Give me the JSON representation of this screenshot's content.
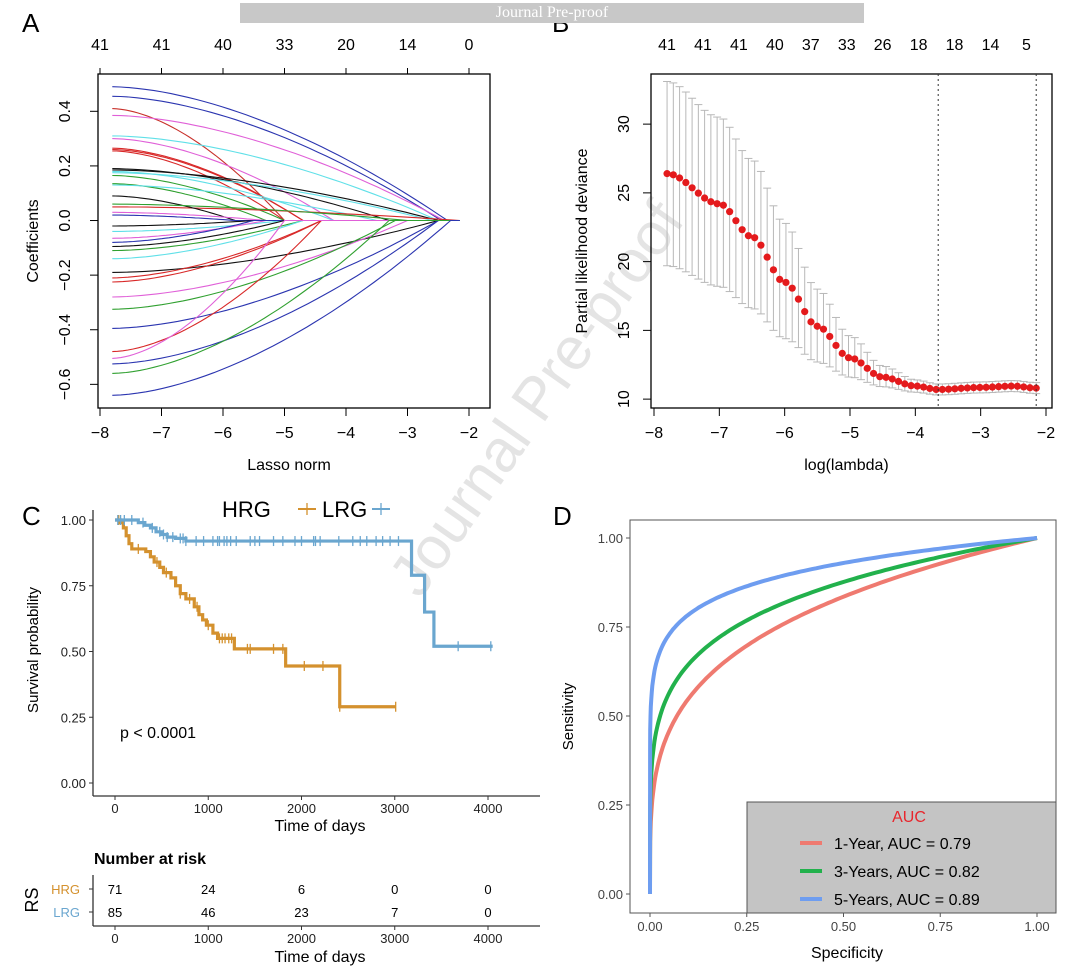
{
  "banner": "Journal Pre-proof",
  "watermark": "Journal Pre-proof",
  "chart_data": [
    {
      "panel": "A",
      "type": "line",
      "title": "",
      "xlabel": "Lasso norm",
      "ylabel": "Coefficients",
      "xlim": [
        -8,
        -2
      ],
      "ylim": [
        -0.65,
        0.5
      ],
      "x_ticks": [
        -8,
        -7,
        -6,
        -5,
        -4,
        -3,
        -2
      ],
      "x_tick_labels": [
        "−8",
        "−7",
        "−6",
        "−5",
        "−4",
        "−3",
        "−2"
      ],
      "y_ticks": [
        -0.6,
        -0.4,
        -0.2,
        0.0,
        0.2,
        0.4
      ],
      "y_tick_labels": [
        "−0.6",
        "−0.4",
        "−0.2",
        "0.0",
        "0.2",
        "0.4"
      ],
      "top_ticks": [
        -8,
        -7,
        -6,
        -5,
        -4,
        -3,
        -2
      ],
      "top_labels": [
        "41",
        "41",
        "40",
        "33",
        "20",
        "14",
        "0"
      ],
      "x_start": -7.8,
      "series": [
        {
          "color": "#2b35b0",
          "start": 0.49,
          "zero_at": -2.35
        },
        {
          "color": "#2b35b0",
          "start": 0.455,
          "zero_at": -2.45
        },
        {
          "color": "#c8302a",
          "start": 0.41,
          "zero_at": -5.0
        },
        {
          "color": "#e060d8",
          "start": 0.385,
          "zero_at": -2.4
        },
        {
          "color": "#60e0e8",
          "start": 0.31,
          "zero_at": -2.5
        },
        {
          "color": "#e060d8",
          "start": 0.3,
          "zero_at": -4.2
        },
        {
          "color": "#d82828",
          "start": 0.265,
          "zero_at": -4.7
        },
        {
          "color": "#d82828",
          "start": 0.26,
          "zero_at": -4.7
        },
        {
          "color": "#d82828",
          "start": 0.255,
          "zero_at": -5.0
        },
        {
          "color": "#111111",
          "start": 0.19,
          "zero_at": -3.3
        },
        {
          "color": "#111111",
          "start": 0.185,
          "zero_at": -2.5
        },
        {
          "color": "#60e0e8",
          "start": 0.18,
          "zero_at": -4.2
        },
        {
          "color": "#60e0e8",
          "start": 0.175,
          "zero_at": -2.6
        },
        {
          "color": "#30a030",
          "start": 0.165,
          "zero_at": -5.0
        },
        {
          "color": "#30a030",
          "start": 0.135,
          "zero_at": -5.3
        },
        {
          "color": "#60e0e8",
          "start": 0.13,
          "zero_at": -3.5
        },
        {
          "color": "#d82828",
          "start": 0.05,
          "zero_at": -2.15
        },
        {
          "color": "#111111",
          "start": 0.09,
          "zero_at": -5.8
        },
        {
          "color": "#30a030",
          "start": 0.06,
          "zero_at": -3.0
        },
        {
          "color": "#e060d8",
          "start": 0.03,
          "zero_at": -5.3
        },
        {
          "color": "#2b35b0",
          "start": 0.02,
          "zero_at": -5.8
        },
        {
          "color": "#111111",
          "start": -0.02,
          "zero_at": -5.5
        },
        {
          "color": "#60e0e8",
          "start": -0.04,
          "zero_at": -5.0
        },
        {
          "color": "#e060d8",
          "start": -0.065,
          "zero_at": -5.3
        },
        {
          "color": "#2b35b0",
          "start": -0.08,
          "zero_at": -5.5
        },
        {
          "color": "#111111",
          "start": -0.095,
          "zero_at": -5.0
        },
        {
          "color": "#30a030",
          "start": -0.11,
          "zero_at": -4.7
        },
        {
          "color": "#60e0e8",
          "start": -0.14,
          "zero_at": -4.7
        },
        {
          "color": "#111111",
          "start": -0.19,
          "zero_at": -2.5
        },
        {
          "color": "#d82828",
          "start": -0.21,
          "zero_at": -4.4
        },
        {
          "color": "#d82828",
          "start": -0.225,
          "zero_at": -4.4
        },
        {
          "color": "#e060d8",
          "start": -0.28,
          "zero_at": -3.0
        },
        {
          "color": "#30a030",
          "start": -0.325,
          "zero_at": -3.2
        },
        {
          "color": "#2b35b0",
          "start": -0.395,
          "zero_at": -2.5
        },
        {
          "color": "#d82828",
          "start": -0.48,
          "zero_at": -4.4
        },
        {
          "color": "#e060d8",
          "start": -0.505,
          "zero_at": -5.0
        },
        {
          "color": "#2b35b0",
          "start": -0.525,
          "zero_at": -2.5
        },
        {
          "color": "#30a030",
          "start": -0.56,
          "zero_at": -3.3
        },
        {
          "color": "#2b35b0",
          "start": -0.64,
          "zero_at": -2.3
        }
      ]
    },
    {
      "panel": "B",
      "type": "scatter",
      "title": "",
      "xlabel": "log(lambda)",
      "ylabel": "Partial likelihood deviance",
      "xlim": [
        -8,
        -2
      ],
      "ylim": [
        9.5,
        33.5
      ],
      "x_ticks": [
        -8,
        -7,
        -6,
        -5,
        -4,
        -3,
        -2
      ],
      "x_tick_labels": [
        "−8",
        "−7",
        "−6",
        "−5",
        "−4",
        "−3",
        "−2"
      ],
      "y_ticks": [
        10,
        15,
        20,
        25,
        30
      ],
      "y_tick_labels": [
        "10",
        "15",
        "20",
        "25",
        "30"
      ],
      "top_ticks": [
        -7.8,
        -7.25,
        -6.7,
        -6.15,
        -5.6,
        -5.05,
        -4.5,
        -3.95,
        -3.4,
        -2.85,
        -2.3
      ],
      "top_labels": [
        "41",
        "41",
        "41",
        "40",
        "37",
        "33",
        "26",
        "18",
        "18",
        "14",
        "5"
      ],
      "vlines": [
        -3.65,
        -2.15
      ],
      "points": {
        "x_start": -7.8,
        "x_end": -2.15,
        "n": 60,
        "deviance_profile": [
          [
            -7.8,
            26.4
          ],
          [
            -7.0,
            24.2
          ],
          [
            -6.5,
            21.8
          ],
          [
            -6.0,
            18.5
          ],
          [
            -5.5,
            15.3
          ],
          [
            -5.0,
            13.0
          ],
          [
            -4.5,
            11.6
          ],
          [
            -4.0,
            10.95
          ],
          [
            -3.65,
            10.7
          ],
          [
            -3.0,
            10.85
          ],
          [
            -2.5,
            10.95
          ],
          [
            -2.15,
            10.8
          ]
        ],
        "upper_profile": [
          [
            -7.8,
            33.1
          ],
          [
            -7.0,
            30.5
          ],
          [
            -6.5,
            27.4
          ],
          [
            -6.0,
            22.8
          ],
          [
            -5.5,
            18.0
          ],
          [
            -5.0,
            14.6
          ],
          [
            -4.5,
            12.4
          ],
          [
            -4.0,
            11.4
          ],
          [
            -3.65,
            11.1
          ],
          [
            -3.0,
            11.25
          ],
          [
            -2.5,
            11.35
          ],
          [
            -2.15,
            11.2
          ]
        ],
        "lower_profile": [
          [
            -7.8,
            19.7
          ],
          [
            -7.0,
            18.2
          ],
          [
            -6.5,
            16.6
          ],
          [
            -6.0,
            14.4
          ],
          [
            -5.5,
            12.7
          ],
          [
            -5.0,
            11.6
          ],
          [
            -4.5,
            10.9
          ],
          [
            -4.0,
            10.5
          ],
          [
            -3.65,
            10.3
          ],
          [
            -3.0,
            10.45
          ],
          [
            -2.5,
            10.55
          ],
          [
            -2.15,
            10.4
          ]
        ]
      }
    },
    {
      "panel": "C",
      "type": "line",
      "title": "",
      "xlabel": "Time of days",
      "ylabel": "Survival probability",
      "xlim": [
        -200,
        4200
      ],
      "ylim": [
        -0.05,
        1.03
      ],
      "x_ticks": [
        0,
        1000,
        2000,
        3000,
        4000
      ],
      "x_tick_labels": [
        "0",
        "1000",
        "2000",
        "3000",
        "4000"
      ],
      "y_ticks": [
        0,
        0.25,
        0.5,
        0.75,
        1.0
      ],
      "y_tick_labels": [
        "0.00",
        "0.25",
        "0.50",
        "0.75",
        "1.00"
      ],
      "legend": {
        "position": "top",
        "items": [
          {
            "label": "HRG",
            "color": "#d4912e"
          },
          {
            "label": "LRG",
            "color": "#6aa6cf"
          }
        ]
      },
      "annotation": "p < 0.0001",
      "series": [
        {
          "name": "HRG",
          "color": "#d4912e",
          "steps": [
            [
              0,
              1.0
            ],
            [
              60,
              0.99
            ],
            [
              90,
              0.97
            ],
            [
              120,
              0.94
            ],
            [
              150,
              0.91
            ],
            [
              180,
              0.89
            ],
            [
              330,
              0.88
            ],
            [
              380,
              0.86
            ],
            [
              420,
              0.84
            ],
            [
              480,
              0.82
            ],
            [
              520,
              0.8
            ],
            [
              600,
              0.78
            ],
            [
              650,
              0.75
            ],
            [
              700,
              0.72
            ],
            [
              760,
              0.7
            ],
            [
              850,
              0.67
            ],
            [
              900,
              0.64
            ],
            [
              940,
              0.62
            ],
            [
              980,
              0.6
            ],
            [
              1050,
              0.57
            ],
            [
              1100,
              0.55
            ],
            [
              1280,
              0.51
            ],
            [
              1830,
              0.445
            ],
            [
              2410,
              0.29
            ],
            [
              3010,
              0.29
            ]
          ],
          "censor_marks": [
            40,
            250,
            450,
            550,
            700,
            800,
            880,
            1000,
            1120,
            1150,
            1180,
            1220,
            1250,
            1420,
            1450,
            1700,
            1800,
            2030,
            2230,
            2410,
            3010
          ]
        },
        {
          "name": "LRG",
          "color": "#6aa6cf",
          "steps": [
            [
              0,
              1.0
            ],
            [
              250,
              0.99
            ],
            [
              320,
              0.98
            ],
            [
              380,
              0.97
            ],
            [
              440,
              0.955
            ],
            [
              500,
              0.945
            ],
            [
              560,
              0.935
            ],
            [
              650,
              0.93
            ],
            [
              760,
              0.92
            ],
            [
              3180,
              0.79
            ],
            [
              3320,
              0.65
            ],
            [
              3420,
              0.52
            ],
            [
              4050,
              0.52
            ]
          ],
          "censor_marks": [
            30,
            60,
            100,
            180,
            300,
            400,
            480,
            520,
            560,
            620,
            700,
            730,
            760,
            870,
            950,
            1050,
            1100,
            1120,
            1170,
            1200,
            1240,
            1300,
            1450,
            1500,
            1550,
            1700,
            1800,
            1930,
            2000,
            2130,
            2150,
            2200,
            2400,
            2550,
            2630,
            2700,
            2800,
            2870,
            2950,
            3040,
            3680,
            4030
          ]
        }
      ]
    },
    {
      "panel": "C-risk",
      "type": "table",
      "title": "Number at risk",
      "xlabel": "Time of days",
      "ylabel": "RS",
      "x_ticks": [
        0,
        1000,
        2000,
        3000,
        4000
      ],
      "x_tick_labels": [
        "0",
        "1000",
        "2000",
        "3000",
        "4000"
      ],
      "rows": [
        {
          "group": "HRG",
          "color": "#d4912e",
          "values": [
            "71",
            "24",
            "6",
            "0",
            "0"
          ]
        },
        {
          "group": "LRG",
          "color": "#6aa6cf",
          "values": [
            "85",
            "46",
            "23",
            "7",
            "0"
          ]
        }
      ]
    },
    {
      "panel": "D",
      "type": "line",
      "title": "",
      "xlabel": "Specificity",
      "ylabel": "Sensitivity",
      "xlim": [
        -0.05,
        1.05
      ],
      "ylim": [
        -0.05,
        1.05
      ],
      "x_ticks": [
        0,
        0.25,
        0.5,
        0.75,
        1.0
      ],
      "x_tick_labels": [
        "0.00",
        "0.25",
        "0.50",
        "0.75",
        "1.00"
      ],
      "y_ticks": [
        0,
        0.25,
        0.5,
        0.75,
        1.0
      ],
      "y_tick_labels": [
        "0.00",
        "0.25",
        "0.50",
        "0.75",
        "1.00"
      ],
      "legend": {
        "title": "AUC",
        "title_color": "#e8262d",
        "position": "bottom-right",
        "items": [
          {
            "label": "1-Year,   AUC = 0.79",
            "color": "#ef7a70",
            "auc": 0.79
          },
          {
            "label": "3-Years, AUC = 0.82",
            "color": "#22b14c",
            "auc": 0.82
          },
          {
            "label": "5-Years, AUC = 0.89",
            "color": "#6e9df0",
            "auc": 0.89
          }
        ]
      },
      "series": [
        {
          "name": "1-Year",
          "color": "#ef7a70",
          "auc": 0.79,
          "curve_exponent": 0.26
        },
        {
          "name": "3-Years",
          "color": "#22b14c",
          "auc": 0.82,
          "curve_exponent": 0.19
        },
        {
          "name": "5-Years",
          "color": "#6e9df0",
          "auc": 0.89,
          "curve_exponent": 0.105
        }
      ]
    }
  ],
  "panel_labels": [
    "A",
    "B",
    "C",
    "D"
  ]
}
